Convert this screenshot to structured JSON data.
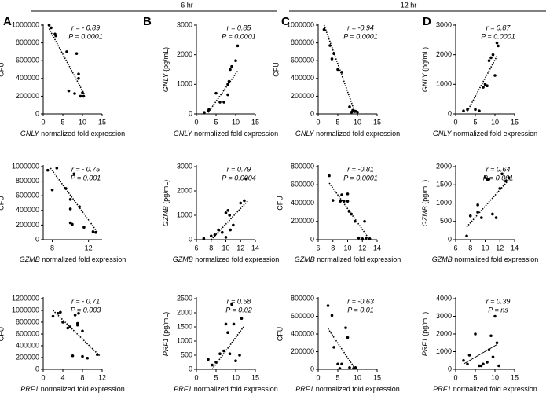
{
  "header": {
    "left": "6 hr",
    "right": "12 hr"
  },
  "panels": [
    "A",
    "B",
    "C",
    "D"
  ],
  "chart_data": [
    {
      "type": "scatter",
      "color": "#000000",
      "ylabel": "CFU",
      "xlabel": "GNLY normalized fold expression",
      "annotations": [
        "r = - 0.89",
        "P = 0.0001"
      ],
      "xlim": [
        0,
        15
      ],
      "xticks": [
        0,
        5,
        10,
        15
      ],
      "ylim": [
        0,
        1000000
      ],
      "yticks": [
        0,
        200000,
        400000,
        600000,
        800000,
        1000000
      ],
      "x": [
        1.5,
        2,
        3,
        3.2,
        6,
        6.5,
        8,
        8.5,
        9,
        9,
        9.5,
        10,
        10.3
      ],
      "values": [
        1000000,
        970000,
        900000,
        880000,
        700000,
        260000,
        230000,
        680000,
        450000,
        400000,
        200000,
        240000,
        200000
      ],
      "fit": {
        "style": "dotted",
        "x": [
          1.5,
          10.5
        ],
        "values": [
          960000,
          220000
        ]
      }
    },
    {
      "type": "scatter",
      "color": "#000000",
      "ylabel": "GNLY (pg/mL)",
      "xlabel": "GNLY normalized fold expression",
      "annotations": [
        "r = 0.85",
        "P = 0.0001"
      ],
      "xlim": [
        0,
        15
      ],
      "xticks": [
        0,
        5,
        10,
        15
      ],
      "ylim": [
        0,
        3000
      ],
      "yticks": [
        0,
        1000,
        2000,
        3000
      ],
      "x": [
        2,
        3,
        3.2,
        5,
        6,
        7,
        8,
        8.3,
        8.6,
        9,
        10,
        10.5,
        8
      ],
      "values": [
        50,
        100,
        150,
        700,
        400,
        400,
        1000,
        1100,
        1500,
        1600,
        1800,
        2300,
        650
      ],
      "fit": {
        "style": "dotted",
        "x": [
          3,
          10.5
        ],
        "values": [
          50,
          1450
        ]
      }
    },
    {
      "type": "scatter",
      "color": "#000000",
      "ylabel": "CFU",
      "xlabel": "GNLY normalized fold expression",
      "annotations": [
        "r = -0.94",
        "P = 0.0001"
      ],
      "xlim": [
        0,
        15
      ],
      "xticks": [
        0,
        5,
        10,
        15
      ],
      "ylim": [
        0,
        1000000
      ],
      "yticks": [
        0,
        200000,
        400000,
        600000,
        800000,
        1000000
      ],
      "x": [
        1.5,
        3,
        3.5,
        4,
        5,
        6,
        8,
        8.5,
        9,
        9.5,
        10,
        8.8
      ],
      "values": [
        950000,
        770000,
        620000,
        680000,
        500000,
        470000,
        80000,
        20000,
        30000,
        30000,
        20000,
        40000
      ],
      "fit": {
        "style": "dotted",
        "x": [
          1.5,
          9.5
        ],
        "values": [
          1000000,
          0
        ]
      }
    },
    {
      "type": "scatter",
      "color": "#000000",
      "ylabel": "GNLY (pg/mL)",
      "xlabel": "GNLY normalized fold expression",
      "annotations": [
        "r = 0.87",
        "P = 0.0001"
      ],
      "xlim": [
        0,
        15
      ],
      "xticks": [
        0,
        5,
        10,
        15
      ],
      "ylim": [
        0,
        3000
      ],
      "yticks": [
        0,
        1000,
        2000,
        3000
      ],
      "x": [
        2,
        3,
        5,
        7,
        7.5,
        8,
        8.5,
        9,
        9.5,
        10,
        10.5,
        10.8,
        6
      ],
      "values": [
        100,
        150,
        150,
        900,
        1000,
        950,
        1800,
        1900,
        2000,
        1300,
        2400,
        2300,
        100
      ],
      "fit": {
        "style": "dotted",
        "x": [
          3,
          10.5
        ],
        "values": [
          100,
          1950
        ]
      }
    },
    {
      "type": "scatter",
      "color": "#000000",
      "ylabel": "CFU",
      "xlabel": "GZMB normalized fold expression",
      "annotations": [
        "r = - 0.75",
        "P = 0.001"
      ],
      "xlim": [
        7,
        13.5
      ],
      "xticks": [
        8,
        12
      ],
      "ylim": [
        0,
        1000000
      ],
      "yticks": [
        0,
        200000,
        400000,
        600000,
        800000,
        1000000
      ],
      "x": [
        7.5,
        8,
        8.5,
        9.5,
        10,
        10,
        10,
        10.2,
        10.4,
        11,
        11.5,
        12.5,
        12.8
      ],
      "values": [
        950000,
        680000,
        980000,
        700000,
        550000,
        420000,
        230000,
        210000,
        900000,
        450000,
        170000,
        110000,
        100000
      ],
      "fit": {
        "style": "dotted",
        "x": [
          7.8,
          13
        ],
        "values": [
          980000,
          100000
        ]
      }
    },
    {
      "type": "scatter",
      "color": "#000000",
      "ylabel": "GZMB (pg/mL)",
      "xlabel": "GZMB normalized fold expression",
      "annotations": [
        "r = 0.79",
        "P = 0.0004"
      ],
      "xlim": [
        6,
        14
      ],
      "xticks": [
        6,
        8,
        10,
        12,
        14
      ],
      "ylim": [
        0,
        3000
      ],
      "yticks": [
        0,
        1000,
        2000,
        3000
      ],
      "x": [
        7,
        8,
        8.5,
        9,
        9.5,
        10,
        10,
        10.3,
        10.5,
        10.6,
        11,
        12,
        12.5,
        12.8
      ],
      "values": [
        50,
        150,
        200,
        400,
        300,
        1100,
        100,
        1200,
        1000,
        400,
        600,
        1500,
        1600,
        2500
      ],
      "fit": {
        "style": "dotted",
        "x": [
          8,
          13
        ],
        "values": [
          0,
          1600
        ]
      }
    },
    {
      "type": "scatter",
      "color": "#000000",
      "ylabel": "CFU",
      "xlabel": "GZMB normalized fold expression",
      "annotations": [
        "r = -0.81",
        "P = 0.0001"
      ],
      "xlim": [
        6,
        14
      ],
      "xticks": [
        6,
        8,
        10,
        12,
        14
      ],
      "ylim": [
        0,
        800000
      ],
      "yticks": [
        0,
        200000,
        400000,
        600000,
        800000
      ],
      "x": [
        7.5,
        8,
        9,
        9.2,
        9.5,
        10,
        10,
        10.2,
        10.5,
        11,
        11.5,
        12,
        12.3,
        12.5,
        13
      ],
      "values": [
        700000,
        430000,
        420000,
        490000,
        420000,
        420000,
        500000,
        310000,
        280000,
        200000,
        20000,
        10000,
        200000,
        20000,
        10000
      ],
      "fit": {
        "style": "dotted",
        "x": [
          7.5,
          13
        ],
        "values": [
          620000,
          0
        ]
      }
    },
    {
      "type": "scatter",
      "color": "#000000",
      "ylabel": "GZMB (pg/mL)",
      "xlabel": "GZMB normalized fold expression",
      "annotations": [
        "r = 0.64",
        "P = 0.001"
      ],
      "xlim": [
        6,
        14
      ],
      "xticks": [
        6,
        8,
        10,
        12,
        14
      ],
      "ylim": [
        0,
        2000
      ],
      "yticks": [
        0,
        500,
        1000,
        1500,
        2000
      ],
      "x": [
        7.5,
        8,
        9,
        9.5,
        10,
        10.3,
        10.5,
        11,
        11.5,
        12,
        12.3,
        12.8,
        13.2,
        9
      ],
      "values": [
        100,
        650,
        950,
        600,
        1700,
        1650,
        1650,
        700,
        600,
        1400,
        1800,
        1600,
        1700,
        750
      ],
      "fit": {
        "style": "dotted",
        "x": [
          7.5,
          13.5
        ],
        "values": [
          350,
          1700
        ]
      }
    },
    {
      "type": "scatter",
      "color": "#000000",
      "ylabel": "CFU",
      "xlabel": "PRF1 normalized fold expression",
      "annotations": [
        "r = - 0.71",
        "P = 0.003"
      ],
      "xlim": [
        0,
        12
      ],
      "xticks": [
        0,
        4,
        8,
        12
      ],
      "ylim": [
        0,
        1200000
      ],
      "yticks": [
        0,
        200000,
        400000,
        600000,
        800000,
        1000000,
        1200000
      ],
      "x": [
        2,
        3,
        3.5,
        4,
        5,
        5.5,
        6,
        6.5,
        7,
        7,
        7.2,
        8,
        8,
        9,
        11
      ],
      "values": [
        900000,
        950000,
        970000,
        800000,
        700000,
        720000,
        230000,
        920000,
        780000,
        750000,
        950000,
        650000,
        220000,
        190000,
        250000
      ],
      "fit": {
        "style": "dotted",
        "x": [
          2,
          11.5
        ],
        "values": [
          1000000,
          230000
        ]
      }
    },
    {
      "type": "scatter",
      "color": "#000000",
      "ylabel": "PRF1 (pg/mL)",
      "xlabel": "PRF1 normalized fold expression",
      "annotations": [
        "r = 0.58",
        "P = 0.02"
      ],
      "xlim": [
        0,
        15
      ],
      "xticks": [
        0,
        5,
        10,
        15
      ],
      "ylim": [
        0,
        2500
      ],
      "yticks": [
        0,
        500,
        1000,
        1500,
        2000,
        2500
      ],
      "x": [
        3,
        4,
        5,
        6,
        7,
        7.5,
        8,
        9,
        9.5,
        10,
        11,
        11.5,
        8.5
      ],
      "values": [
        350,
        150,
        250,
        550,
        650,
        1600,
        1300,
        2300,
        1600,
        300,
        500,
        1800,
        550
      ],
      "fit": {
        "style": "dotted",
        "x": [
          4,
          12
        ],
        "values": [
          0,
          1500
        ]
      }
    },
    {
      "type": "scatter",
      "color": "#000000",
      "ylabel": "CFU",
      "xlabel": "PRF1 normalized fold expression",
      "annotations": [
        "r = -0.63",
        "P = 0.01"
      ],
      "xlim": [
        0,
        15
      ],
      "xticks": [
        0,
        5,
        10,
        15
      ],
      "ylim": [
        0,
        800000
      ],
      "yticks": [
        0,
        200000,
        400000,
        600000,
        800000
      ],
      "x": [
        2.5,
        3.5,
        4,
        5,
        5.5,
        6,
        7,
        7.5,
        8,
        9,
        9.5
      ],
      "values": [
        720000,
        610000,
        250000,
        60000,
        10000,
        60000,
        470000,
        360000,
        20000,
        10000,
        20000
      ],
      "fit": {
        "style": "dotted",
        "x": [
          2.5,
          9.5
        ],
        "values": [
          460000,
          0
        ]
      }
    },
    {
      "type": "scatter",
      "color": "#000000",
      "ylabel": "PRF1 (pg/mL)",
      "xlabel": "PRF1 normalized fold expression",
      "annotations": [
        "r = 0.39",
        "P = ns"
      ],
      "xlim": [
        0,
        15
      ],
      "xticks": [
        0,
        5,
        10,
        15
      ],
      "ylim": [
        0,
        4000
      ],
      "yticks": [
        0,
        1000,
        2000,
        3000,
        4000
      ],
      "x": [
        2,
        3,
        3.5,
        5,
        6,
        6.5,
        7,
        8,
        8.5,
        9,
        9.5,
        10,
        10.5,
        11
      ],
      "values": [
        500,
        300,
        800,
        2000,
        200,
        200,
        300,
        400,
        1100,
        1900,
        700,
        3000,
        1500,
        200
      ],
      "fit": {
        "style": "solid",
        "x": [
          2,
          10.5
        ],
        "values": [
          300,
          1400
        ]
      }
    }
  ]
}
